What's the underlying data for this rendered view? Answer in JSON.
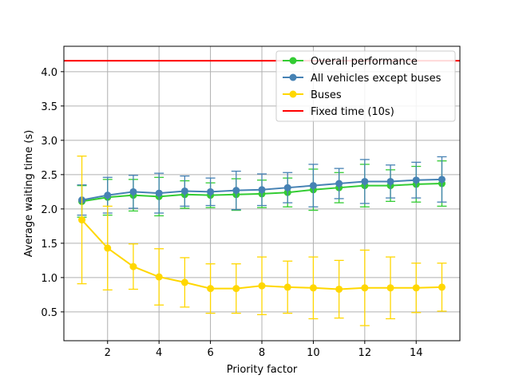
{
  "chart_data": {
    "type": "line",
    "title": "",
    "xlabel": "Priority factor",
    "ylabel": "Average waiting time (s)",
    "xlim": [
      0.3,
      15.7
    ],
    "ylim": [
      0.08,
      4.37
    ],
    "x_ticks": [
      2,
      4,
      6,
      8,
      10,
      12,
      14
    ],
    "y_ticks": [
      0.5,
      1.0,
      1.5,
      2.0,
      2.5,
      3.0,
      3.5,
      4.0
    ],
    "grid": true,
    "legend_position": "top-right",
    "x": [
      1,
      2,
      3,
      4,
      5,
      6,
      7,
      8,
      9,
      10,
      11,
      12,
      13,
      14,
      15
    ],
    "series": [
      {
        "name": "Overall performance",
        "color": "#33cc33",
        "values": [
          2.11,
          2.17,
          2.2,
          2.18,
          2.21,
          2.2,
          2.21,
          2.22,
          2.24,
          2.28,
          2.31,
          2.34,
          2.34,
          2.36,
          2.37
        ],
        "errors": [
          0.23,
          0.26,
          0.23,
          0.28,
          0.2,
          0.18,
          0.23,
          0.2,
          0.21,
          0.3,
          0.22,
          0.31,
          0.23,
          0.26,
          0.33
        ]
      },
      {
        "name": "All vehicles except buses",
        "color": "#4682b4",
        "values": [
          2.13,
          2.2,
          2.25,
          2.23,
          2.26,
          2.25,
          2.27,
          2.28,
          2.31,
          2.34,
          2.37,
          2.4,
          2.4,
          2.42,
          2.43
        ],
        "errors": [
          0.22,
          0.26,
          0.24,
          0.29,
          0.22,
          0.2,
          0.28,
          0.23,
          0.22,
          0.31,
          0.22,
          0.32,
          0.24,
          0.26,
          0.33
        ]
      },
      {
        "name": "Buses",
        "color": "#ffd700",
        "values": [
          1.84,
          1.43,
          1.16,
          1.01,
          0.93,
          0.84,
          0.84,
          0.88,
          0.86,
          0.85,
          0.83,
          0.85,
          0.85,
          0.85,
          0.86
        ],
        "errors": [
          0.93,
          0.61,
          0.33,
          0.41,
          0.36,
          0.36,
          0.36,
          0.42,
          0.38,
          0.45,
          0.42,
          0.55,
          0.45,
          0.36,
          0.35
        ]
      }
    ],
    "reference_line": {
      "name": "Fixed time (10s)",
      "value": 4.16,
      "color": "#ff0000"
    }
  }
}
